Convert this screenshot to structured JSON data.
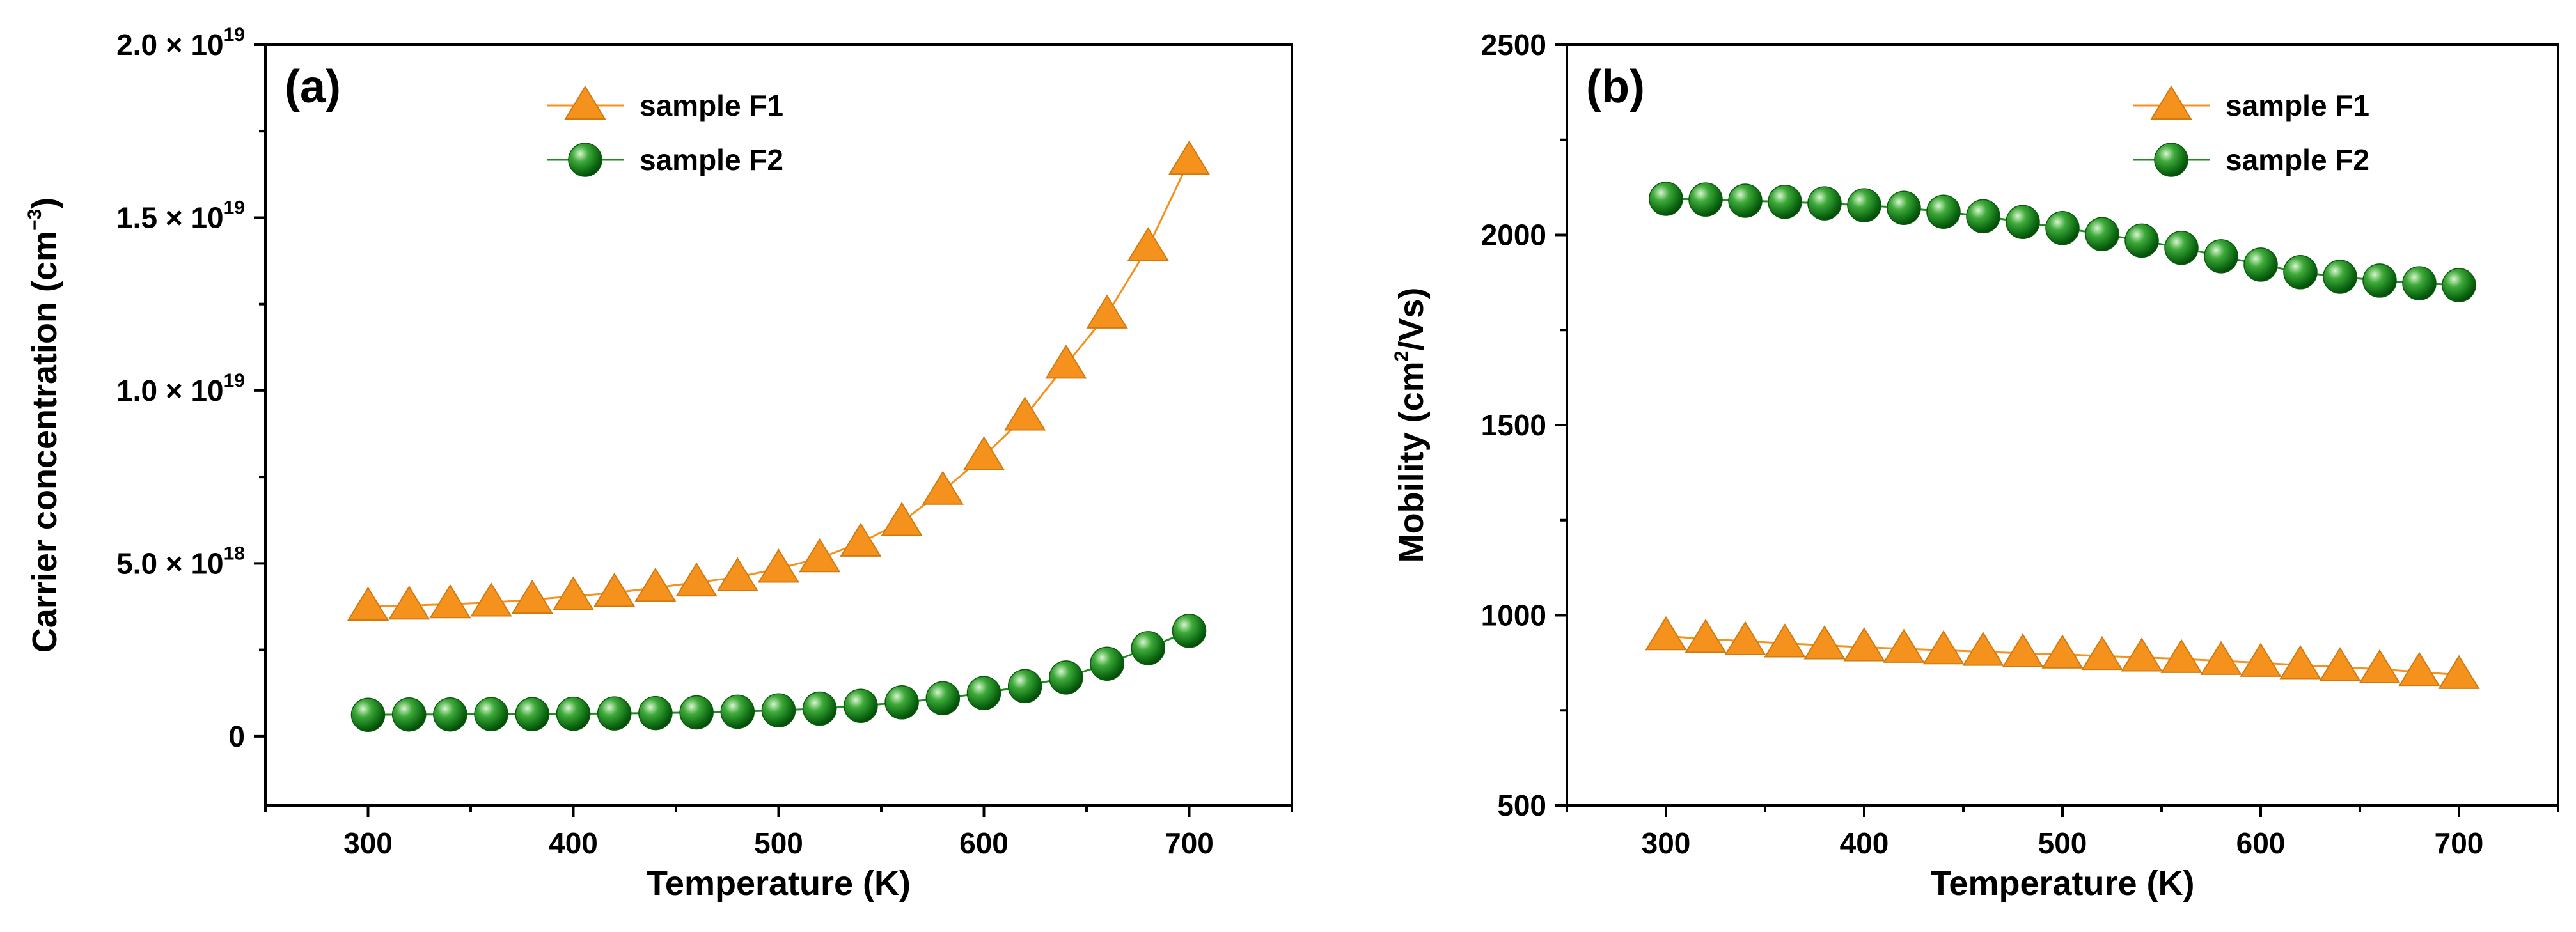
{
  "chart_data": [
    {
      "type": "line",
      "panel_label": "(a)",
      "xlabel": "Temperature (K)",
      "ylabel": {
        "prefix": "Carrier concentration (cm",
        "sup": "−3",
        "suffix": ")"
      },
      "xlim": [
        250,
        750
      ],
      "ylim": [
        -2e+18,
        2e+19
      ],
      "x_ticks": [
        300,
        400,
        500,
        600,
        700
      ],
      "y_ticks": [
        {
          "value": 0,
          "mantissa": "0",
          "exp": ""
        },
        {
          "value": 5e+18,
          "mantissa": "5.0 × 10",
          "exp": "18"
        },
        {
          "value": 1e+19,
          "mantissa": "1.0 × 10",
          "exp": "19"
        },
        {
          "value": 1.5e+19,
          "mantissa": "1.5 × 10",
          "exp": "19"
        },
        {
          "value": 2e+19,
          "mantissa": "2.0 × 10",
          "exp": "19"
        }
      ],
      "legend_position": "top-center",
      "x": [
        300,
        320,
        340,
        360,
        380,
        400,
        420,
        440,
        460,
        480,
        500,
        520,
        540,
        560,
        580,
        600,
        620,
        640,
        660,
        680,
        700
      ],
      "series": [
        {
          "name": "sample F1",
          "marker": "triangle",
          "color": "#F5921E",
          "values": [
            3.75e+18,
            3.78e+18,
            3.82e+18,
            3.87e+18,
            3.95e+18,
            4.05e+18,
            4.15e+18,
            4.3e+18,
            4.45e+18,
            4.6e+18,
            4.85e+18,
            5.15e+18,
            5.6e+18,
            6.2e+18,
            7.1e+18,
            8.1e+18,
            9.25e+18,
            1.075e+19,
            1.22e+19,
            1.415e+19,
            1.665e+19
          ]
        },
        {
          "name": "sample F2",
          "marker": "sphere",
          "color": "#1E8C1E",
          "values": [
            6.2e+17,
            6.3e+17,
            6.3e+17,
            6.4e+17,
            6.4e+17,
            6.5e+17,
            6.6e+17,
            6.7e+17,
            6.9e+17,
            7.1e+17,
            7.5e+17,
            8e+17,
            8.8e+17,
            9.8e+17,
            1.1e+18,
            1.25e+18,
            1.45e+18,
            1.7e+18,
            2.1e+18,
            2.55e+18,
            3.05e+18
          ]
        }
      ]
    },
    {
      "type": "line",
      "panel_label": "(b)",
      "xlabel": "Temperature (K)",
      "ylabel": {
        "prefix": "Mobility (cm",
        "sup": "2",
        "suffix": "/Vs)"
      },
      "xlim": [
        250,
        750
      ],
      "ylim": [
        500,
        2500
      ],
      "x_ticks": [
        300,
        400,
        500,
        600,
        700
      ],
      "y_ticks": [
        {
          "value": 500,
          "mantissa": "500",
          "exp": ""
        },
        {
          "value": 1000,
          "mantissa": "1000",
          "exp": ""
        },
        {
          "value": 1500,
          "mantissa": "1500",
          "exp": ""
        },
        {
          "value": 2000,
          "mantissa": "2000",
          "exp": ""
        },
        {
          "value": 2500,
          "mantissa": "2500",
          "exp": ""
        }
      ],
      "legend_position": "top-right",
      "x": [
        300,
        320,
        340,
        360,
        380,
        400,
        420,
        440,
        460,
        480,
        500,
        520,
        540,
        560,
        580,
        600,
        620,
        640,
        660,
        680,
        700
      ],
      "series": [
        {
          "name": "sample F1",
          "marker": "triangle",
          "color": "#F5921E",
          "values": [
            945,
            938,
            932,
            926,
            921,
            916,
            912,
            908,
            904,
            900,
            897,
            893,
            889,
            885,
            880,
            875,
            869,
            864,
            858,
            851,
            843
          ]
        },
        {
          "name": "sample F2",
          "marker": "sphere",
          "color": "#1E8C1E",
          "values": [
            2095,
            2093,
            2090,
            2087,
            2083,
            2078,
            2071,
            2061,
            2049,
            2034,
            2018,
            2002,
            1985,
            1966,
            1944,
            1922,
            1902,
            1890,
            1880,
            1873,
            1868
          ]
        }
      ]
    }
  ]
}
